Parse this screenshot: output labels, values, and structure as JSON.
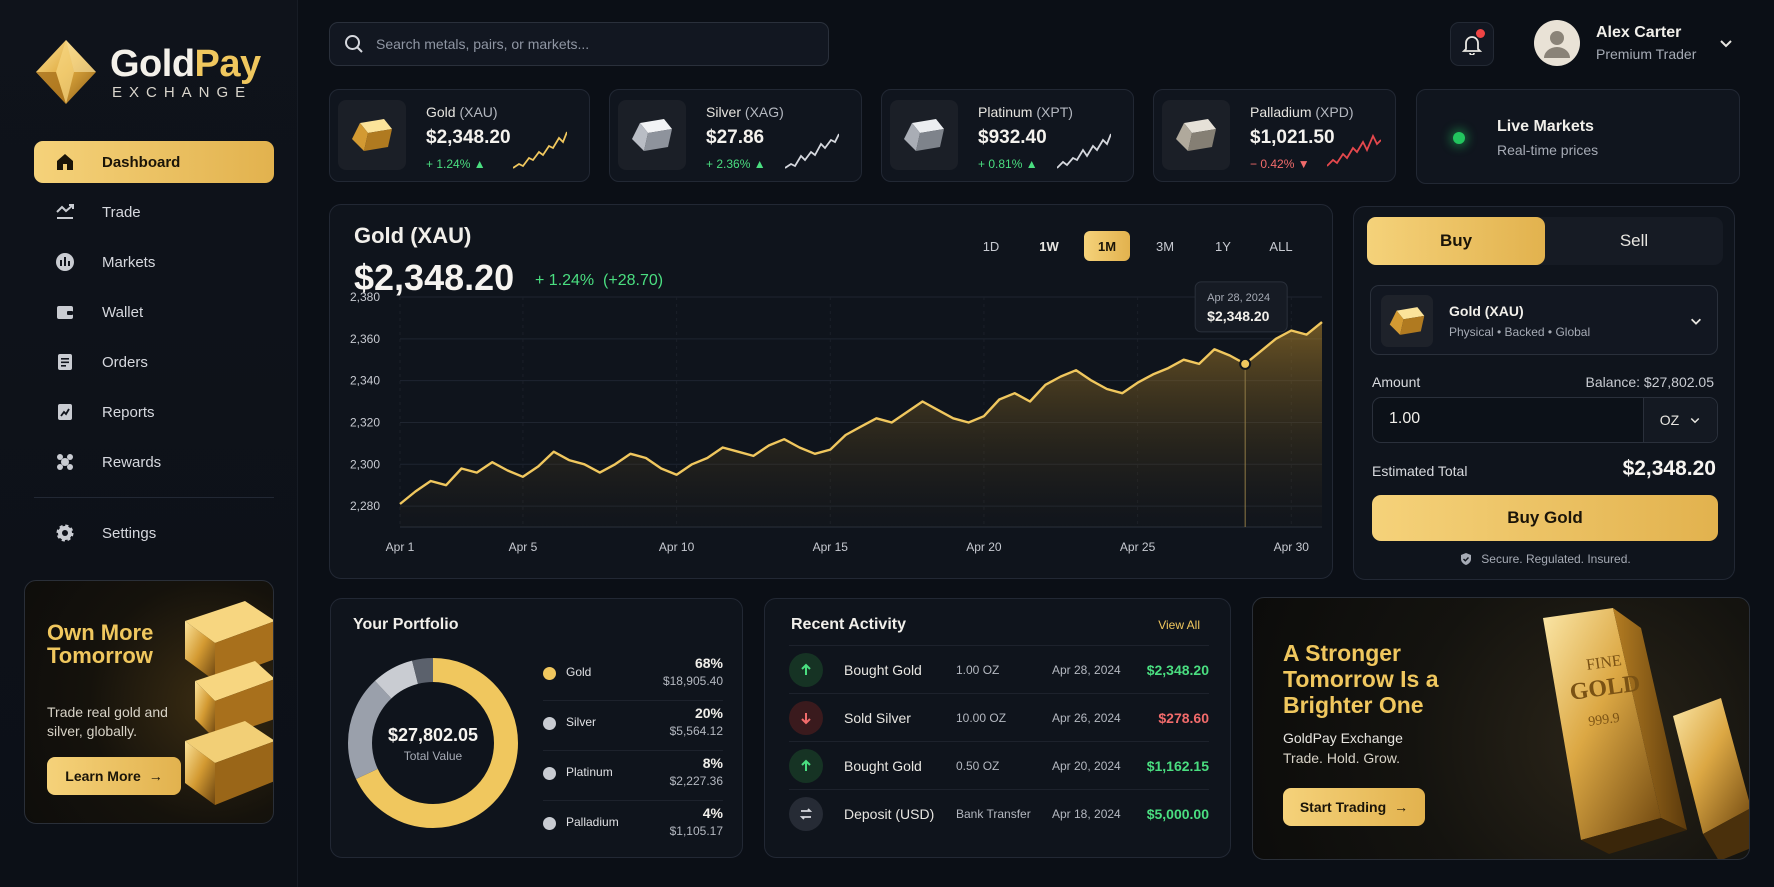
{
  "brand": {
    "name_part1": "Gold",
    "name_part2": "Pay",
    "tagline": "EXCHANGE"
  },
  "sidebar": {
    "items": [
      {
        "label": "Dashboard",
        "icon": "home-icon"
      },
      {
        "label": "Trade",
        "icon": "trade-icon"
      },
      {
        "label": "Markets",
        "icon": "markets-icon"
      },
      {
        "label": "Wallet",
        "icon": "wallet-icon"
      },
      {
        "label": "Orders",
        "icon": "orders-icon"
      },
      {
        "label": "Reports",
        "icon": "reports-icon"
      },
      {
        "label": "Rewards",
        "icon": "rewards-icon"
      }
    ],
    "settings_label": "Settings",
    "promo": {
      "title": "Own More Tomorrow",
      "desc": "Trade real gold and silver, globally.",
      "button": "Learn More"
    }
  },
  "search": {
    "placeholder": "Search metals, pairs, or markets..."
  },
  "user": {
    "name": "Alex Carter",
    "role": "Premium Trader"
  },
  "tickers": [
    {
      "name": "Gold",
      "symbol": "(XAU)",
      "price": "$2,348.20",
      "change": "+ 1.24%",
      "dir": "up"
    },
    {
      "name": "Silver",
      "symbol": "(XAG)",
      "price": "$27.86",
      "change": "+ 2.36%",
      "dir": "up"
    },
    {
      "name": "Platinum",
      "symbol": "(XPT)",
      "price": "$932.40",
      "change": "+ 0.81%",
      "dir": "up"
    },
    {
      "name": "Palladium",
      "symbol": "(XPD)",
      "price": "$1,021.50",
      "change": "− 0.42%",
      "dir": "down"
    }
  ],
  "live": {
    "title": "Live Markets",
    "subtitle": "Real-time prices"
  },
  "chart_panel": {
    "title": "Gold (XAU)",
    "price": "$2,348.20",
    "change_pct": "+ 1.24%",
    "change_abs": "(+28.70)",
    "ranges": [
      "1D",
      "1W",
      "1M",
      "3M",
      "1Y",
      "ALL"
    ],
    "active_range": "1M",
    "tooltip": {
      "date": "Apr 28, 2024",
      "value": "$2,348.20"
    }
  },
  "chart_data": {
    "type": "area",
    "x_ticks": [
      "Apr 1",
      "Apr 5",
      "Apr 10",
      "Apr 15",
      "Apr 20",
      "Apr 25",
      "Apr 30"
    ],
    "x_tick_days": [
      1,
      5,
      10,
      15,
      20,
      25,
      30
    ],
    "y_ticks": [
      2280,
      2300,
      2320,
      2340,
      2360,
      2380
    ],
    "ylim": [
      2270,
      2380
    ],
    "xlim": [
      1,
      31
    ],
    "grid": true,
    "x": [
      1,
      1.5,
      2,
      2.5,
      3,
      3.5,
      4,
      4.5,
      5,
      5.5,
      6,
      6.5,
      7,
      7.5,
      8,
      8.5,
      9,
      9.5,
      10,
      10.5,
      11,
      11.5,
      12,
      12.5,
      13,
      13.5,
      14,
      14.5,
      15,
      15.5,
      16,
      16.5,
      17,
      17.5,
      18,
      18.5,
      19,
      19.5,
      20,
      20.5,
      21,
      21.5,
      22,
      22.5,
      23,
      23.5,
      24,
      24.5,
      25,
      25.5,
      26,
      26.5,
      27,
      27.5,
      28,
      28.5,
      29,
      29.5,
      30,
      30.5,
      31
    ],
    "values": [
      2281,
      2287,
      2292,
      2290,
      2298,
      2296,
      2301,
      2297,
      2294,
      2299,
      2306,
      2302,
      2300,
      2296,
      2300,
      2305,
      2303,
      2298,
      2295,
      2300,
      2303,
      2308,
      2306,
      2304,
      2309,
      2312,
      2308,
      2305,
      2307,
      2314,
      2318,
      2322,
      2320,
      2325,
      2330,
      2326,
      2322,
      2320,
      2323,
      2331,
      2334,
      2330,
      2338,
      2342,
      2345,
      2340,
      2336,
      2334,
      2339,
      2343,
      2346,
      2350,
      2348,
      2355,
      2352,
      2348,
      2354,
      2360,
      2364,
      2362,
      2368
    ],
    "highlight": {
      "x": 28.5,
      "y": 2348
    }
  },
  "trade": {
    "buy_label": "Buy",
    "sell_label": "Sell",
    "asset_name": "Gold (XAU)",
    "asset_sub": "Physical • Backed • Global",
    "amount_label": "Amount",
    "balance": "Balance: $27,802.05",
    "amount_value": "1.00",
    "unit": "OZ",
    "est_label": "Estimated Total",
    "est_value": "$2,348.20",
    "buy_button": "Buy Gold",
    "secure_text": "Secure. Regulated. Insured."
  },
  "portfolio": {
    "title": "Your Portfolio",
    "total": "$27,802.05",
    "total_label": "Total Value",
    "items": [
      {
        "name": "Gold",
        "pct": "68%",
        "pct_value": 68,
        "amount": "$18,905.40",
        "color": "#f0c75e"
      },
      {
        "name": "Silver",
        "pct": "20%",
        "pct_value": 20,
        "amount": "$5,564.12",
        "color": "#a3a8b3"
      },
      {
        "name": "Platinum",
        "pct": "8%",
        "pct_value": 8,
        "amount": "$2,227.36",
        "color": "#c9ccd2"
      },
      {
        "name": "Palladium",
        "pct": "4%",
        "pct_value": 4,
        "amount": "$1,105.17",
        "color": "#5b616c"
      }
    ]
  },
  "activity": {
    "title": "Recent Activity",
    "view_all": "View All",
    "items": [
      {
        "type": "buy",
        "name": "Bought Gold",
        "qty": "1.00 OZ",
        "date": "Apr 28, 2024",
        "amount": "$2,348.20"
      },
      {
        "type": "sell",
        "name": "Sold Silver",
        "qty": "10.00 OZ",
        "date": "Apr 26, 2024",
        "amount": "$278.60"
      },
      {
        "type": "buy",
        "name": "Bought Gold",
        "qty": "0.50 OZ",
        "date": "Apr 20, 2024",
        "amount": "$1,162.15"
      },
      {
        "type": "deposit",
        "name": "Deposit (USD)",
        "qty": "Bank Transfer",
        "date": "Apr 18, 2024",
        "amount": "$5,000.00"
      }
    ]
  },
  "hero": {
    "title": "A Stronger Tomorrow Is a Brighter One",
    "sub1": "GoldPay Exchange",
    "sub2": "Trade. Hold. Grow.",
    "button": "Start Trading",
    "bar_engraving_1": "FINE",
    "bar_engraving_2": "GOLD",
    "bar_engraving_3": "999.9"
  },
  "colors": {
    "accent": "#f0c75e",
    "up": "#4ade80",
    "down": "#f26b6b",
    "bg": "#0b0f16"
  }
}
